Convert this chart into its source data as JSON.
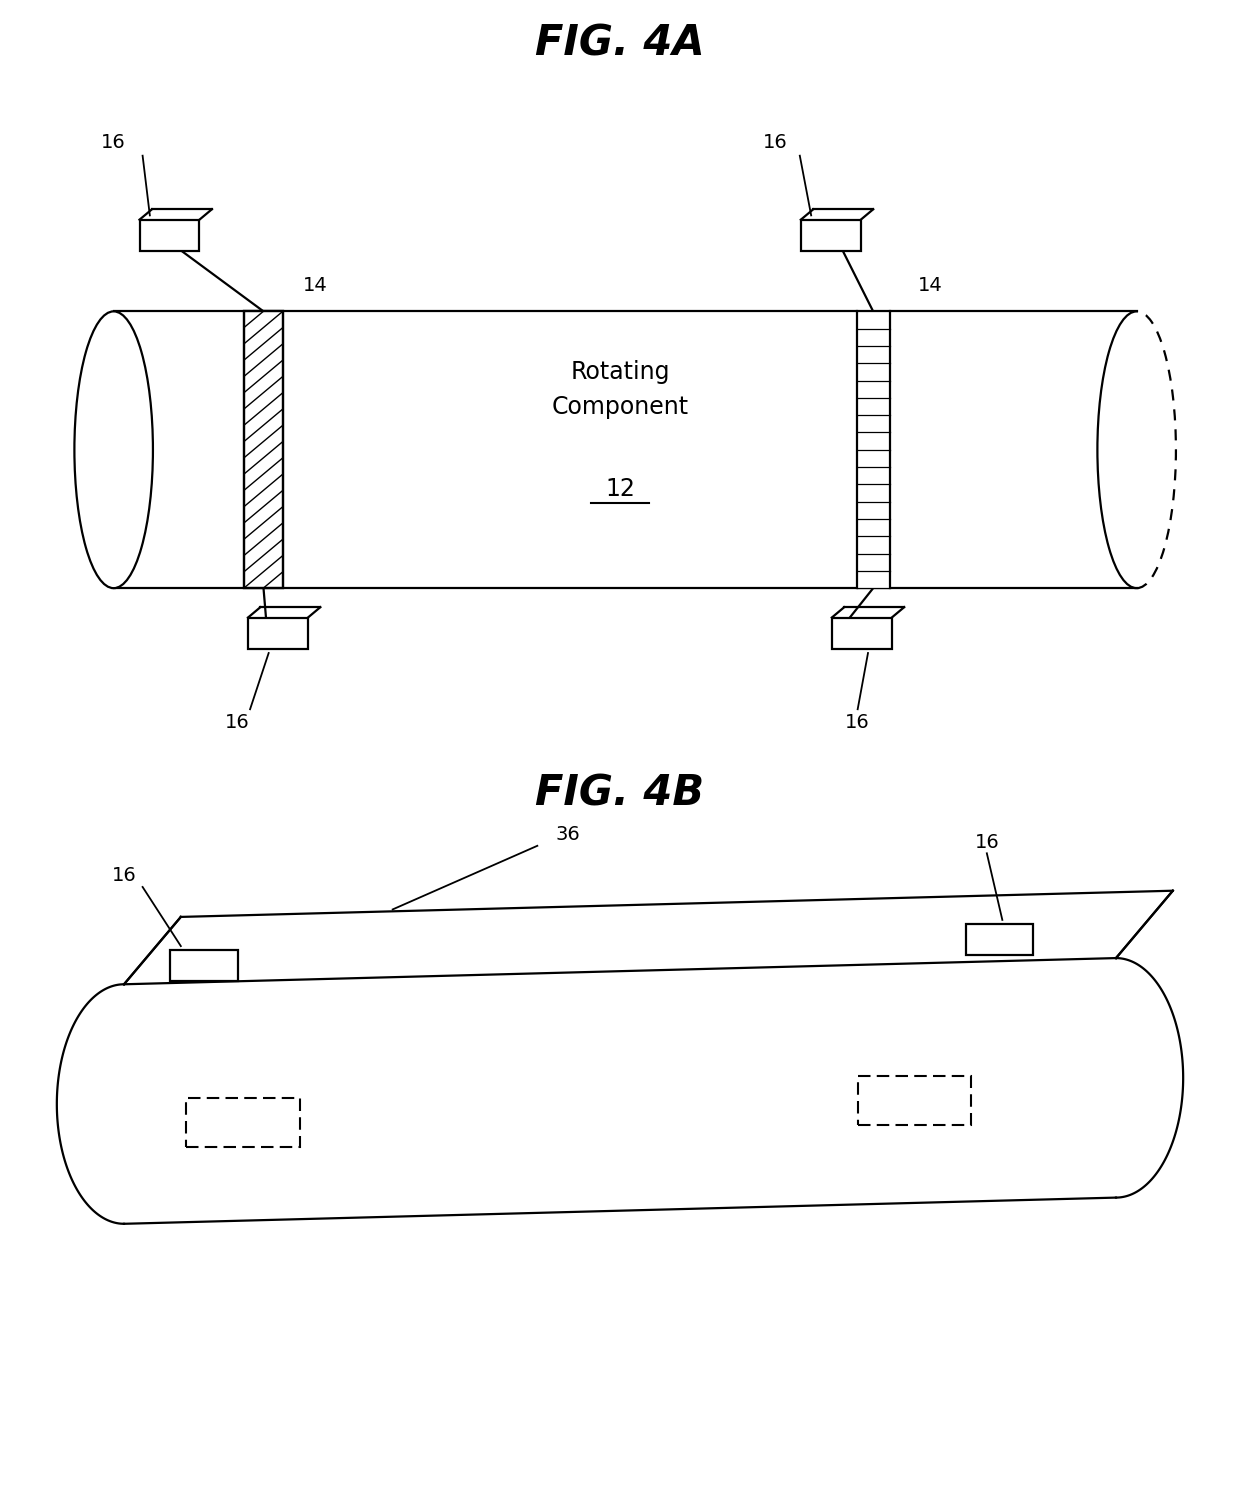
{
  "fig_title_4a": "FIG. 4A",
  "fig_title_4b": "FIG. 4B",
  "label_rotating_component": "Rotating\nComponent",
  "label_12": "12",
  "bg_color": "#ffffff",
  "line_color": "#000000"
}
